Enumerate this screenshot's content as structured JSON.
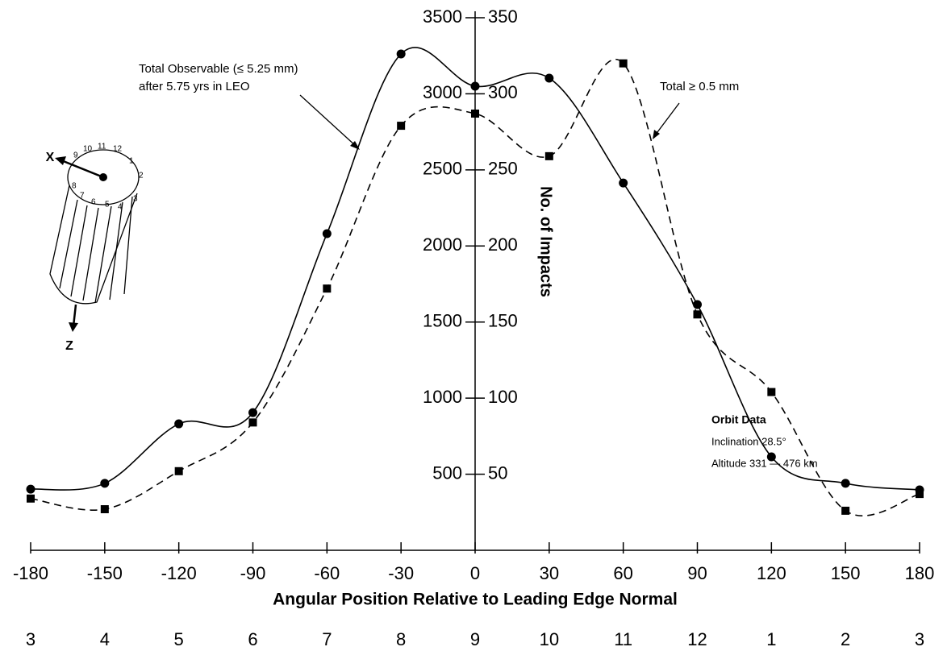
{
  "chart_data": {
    "type": "line",
    "x": [
      -180,
      -150,
      -120,
      -90,
      -60,
      -30,
      0,
      30,
      60,
      90,
      120,
      150,
      180
    ],
    "xlim": [
      -180,
      180
    ],
    "xticks": [
      -180,
      -150,
      -120,
      -90,
      -60,
      -30,
      0,
      30,
      60,
      90,
      120,
      150,
      180
    ],
    "x_label": "Angular Position Relative to Leading Edge Normal",
    "panel_labels": [
      "3",
      "4",
      "5",
      "6",
      "7",
      "8",
      "9",
      "10",
      "11",
      "12",
      "1",
      "2",
      "3"
    ],
    "ylim": [
      0,
      3500
    ],
    "yticks": [
      500,
      1000,
      1500,
      2000,
      2500,
      3000,
      3500
    ],
    "y2lim": [
      0,
      350
    ],
    "y2ticks": [
      50,
      100,
      150,
      200,
      250,
      300,
      350
    ],
    "y_label": "No. of Impacts",
    "series": [
      {
        "color": "#000000",
        "line_style": "solid",
        "marker": "circle",
        "values": [
          402,
          440,
          831,
          905,
          2081,
          3262,
          3050,
          3103,
          2414,
          1615,
          614,
          440,
          397
        ]
      },
      {
        "color": "#000000",
        "line_style": "dashed",
        "marker": "square",
        "axis": "y2",
        "values": [
          34,
          27,
          52,
          84,
          172,
          279,
          287,
          259,
          320,
          155,
          104,
          26,
          37
        ]
      }
    ],
    "annotations": [
      "Total Observable (≤ 5.25 mm)",
      "after 5.75 yrs in LEO",
      "Total ≥ 0.5 mm",
      "Orbit Data",
      "Inclination 28.5°",
      "Altitude 331 — 476 km"
    ]
  },
  "diagram": {
    "axis_labels": [
      "X",
      "Z"
    ],
    "panel_numbers": [
      "1",
      "2",
      "3",
      "4",
      "5",
      "6",
      "7",
      "8",
      "9",
      "10",
      "11",
      "12"
    ]
  }
}
